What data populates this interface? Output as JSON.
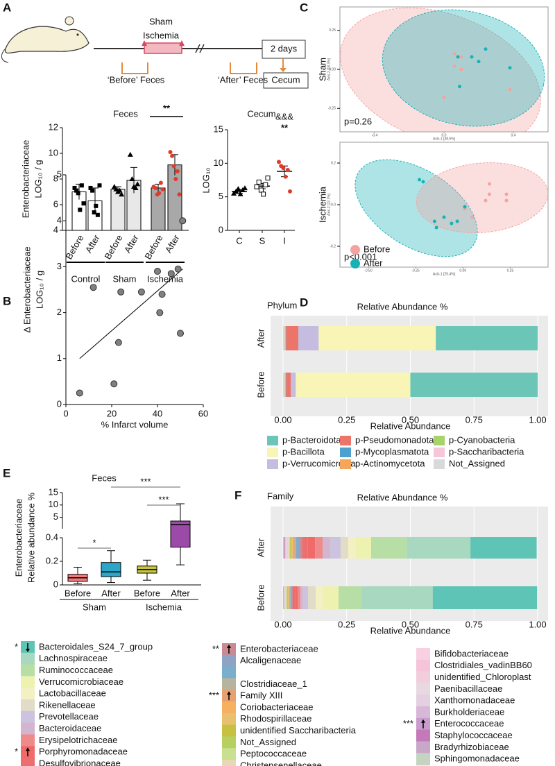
{
  "panels": [
    "A",
    "B",
    "C",
    "D",
    "E",
    "F"
  ],
  "schematic": {
    "sham": "Sham",
    "ischemia": "Ischemia",
    "before": "‘Before’ Feces",
    "after": "‘After’ Feces",
    "duration": "2 days",
    "cecum": "Cecum"
  },
  "chart_data": [
    {
      "type": "bar",
      "title": "Feces",
      "ylabel": [
        "Enterobacteriaceae",
        "LOG₁₀ / g"
      ],
      "categories": [
        "Before",
        "After",
        "Before",
        "After",
        "Before",
        "After"
      ],
      "groups": [
        "Control",
        "Sham",
        "Ischemia"
      ],
      "values": [
        7.0,
        6.3,
        7.2,
        7.9,
        7.3,
        9.1
      ],
      "errors": [
        0.6,
        1.0,
        0.2,
        1.0,
        0.3,
        0.8
      ],
      "points": [
        [
          7.3,
          7.1,
          6.9,
          5.6,
          7.5,
          6.1
        ],
        [
          7.3,
          7.1,
          5.4,
          5.9,
          5.2,
          7.5
        ],
        [
          7.4,
          7.2,
          7.0,
          7.1,
          6.8
        ],
        [
          9.9,
          8.0,
          7.4,
          7.3,
          7.6
        ],
        [
          7.4,
          7.3,
          6.8,
          6.9,
          7.7,
          7.2
        ],
        [
          10.1,
          9.8,
          9.0,
          8.0,
          8.6,
          6.8
        ]
      ],
      "colors": [
        "#ffffff",
        "#ffffff",
        "#e8e8e8",
        "#e8e8e8",
        "#a8a8a8",
        "#a8a8a8"
      ],
      "point_markers": [
        "square",
        "square",
        "triangle",
        "triangle",
        "circle",
        "circle"
      ],
      "point_colors": [
        "#000000",
        "#000000",
        "#000000",
        "#000000",
        "#e03a2a",
        "#e03a2a"
      ],
      "ylim": [
        4,
        12
      ],
      "yticks": [
        4,
        6,
        8,
        10,
        12
      ],
      "annotation": "**"
    },
    {
      "type": "dot",
      "title": "Cecum",
      "ylabel": "LOG₁₀",
      "categories": [
        "C",
        "S",
        "I"
      ],
      "values": [
        5.8,
        6.6,
        8.8
      ],
      "errors": [
        0.3,
        0.4,
        0.8
      ],
      "points": [
        [
          5.5,
          5.8,
          6.2,
          5.4,
          6.0,
          6.3
        ],
        [
          6.5,
          7.2,
          6.0,
          5.4,
          6.8,
          7.8
        ],
        [
          10.2,
          9.6,
          9.3,
          8.0,
          9.0,
          5.8
        ]
      ],
      "point_markers": [
        "triangle",
        "square",
        "circle"
      ],
      "point_colors": [
        "#000000",
        "#000000",
        "#e03a2a"
      ],
      "ylim": [
        0,
        15
      ],
      "yticks": [
        0,
        5,
        10,
        15
      ],
      "annotations": [
        "&&&",
        "**"
      ]
    },
    {
      "type": "scatter",
      "xlabel": "% Infarct volume",
      "ylabel": [
        "Δ Enterobacteriaceae",
        "LOG₁₀ / g"
      ],
      "x": [
        6,
        12,
        21,
        23,
        24,
        33,
        40,
        41,
        42,
        46,
        49,
        50,
        51
      ],
      "y": [
        0.25,
        2.55,
        0.45,
        1.35,
        2.45,
        2.45,
        2.9,
        2.0,
        2.4,
        2.85,
        2.95,
        1.55,
        4.0
      ],
      "color": "#808080",
      "trendline": {
        "x": [
          6,
          51
        ],
        "y": [
          1.0,
          2.95
        ]
      },
      "xlim": [
        0,
        60
      ],
      "xticks": [
        0,
        20,
        40,
        60
      ],
      "ylim": [
        0,
        5
      ],
      "yticks": [
        0,
        1,
        2,
        3,
        4,
        5
      ]
    },
    {
      "type": "scatter",
      "title": "Sham",
      "annotation": "p=0.26",
      "xlabel": "Axis.1 [38.6%]",
      "ylabel": "Axis.2 [18.3%]",
      "xlim": [
        -0.6,
        0.6
      ],
      "xticks": [
        -0.4,
        {
          "value": 0,
          "label": "0.0"
        },
        0.4
      ],
      "ylim": [
        -0.4,
        0.4
      ],
      "yticks": [
        -0.25,
        {
          "value": 0,
          "label": "0.00"
        },
        0.25
      ],
      "series": [
        {
          "color": "#f4a3a0",
          "x": [
            0.06,
            0.1,
            0.06,
            0.1,
            0.0,
            0.38
          ],
          "y": [
            0.1,
            0.08,
            0.02,
            0,
            -0.18,
            -0.13
          ]
        },
        {
          "color": "#17b2b6",
          "x": [
            0.08,
            0.16,
            0.24,
            0.38,
            0.09,
            0.2
          ],
          "y": [
            0.08,
            0.08,
            0.13,
            0.01,
            -0.11,
            0.05
          ]
        }
      ]
    },
    {
      "type": "scatter",
      "title": "Ischemia",
      "annotation": "p<0.001",
      "xlabel": "Axis.1 [25.4%]",
      "ylabel": "Axis.2 [22.1%]",
      "xlim": [
        -0.65,
        0.45
      ],
      "xticks": [
        {
          "value": -0.5,
          "label": "-0.50"
        },
        -0.25,
        {
          "value": 0,
          "label": "0.00"
        },
        0.25
      ],
      "ylim": [
        -0.3,
        0.3
      ],
      "yticks": [
        -0.2,
        {
          "value": 0,
          "label": "0.0"
        },
        0.2
      ],
      "series": [
        {
          "name": "Before",
          "color": "#f4a3a0",
          "x": [
            0.14,
            0.14,
            0.23,
            0.23,
            0.12,
            0.01,
            0.05
          ],
          "y": [
            0.1,
            0.05,
            0.05,
            0.02,
            0.02,
            -0.02,
            -0.06
          ]
        },
        {
          "name": "After",
          "color": "#17b2b6",
          "x": [
            -0.23,
            -0.21,
            0.01,
            -0.1,
            -0.03,
            -0.15,
            -0.06,
            -0.14
          ],
          "y": [
            0.12,
            0.11,
            -0.01,
            -0.06,
            -0.08,
            -0.08,
            -0.09,
            -0.11
          ]
        }
      ]
    },
    {
      "type": "stacked_bar_h",
      "label": "Phylum",
      "title": "Relative Abundance %",
      "xlabel": "Relative Abundance",
      "categories": [
        "After",
        "Before"
      ],
      "xlim": [
        0,
        1
      ],
      "xticks": [
        {
          "value": 0,
          "label": "0.00"
        },
        0.25,
        {
          "value": 0.5,
          "label": "0.50"
        },
        0.75,
        {
          "value": 1,
          "label": "1.00"
        }
      ],
      "grid": true,
      "series": [
        {
          "name": "p-Bacteroidota",
          "color": "#6cc6b8",
          "values": [
            0.4,
            0.5
          ]
        },
        {
          "name": "p-Bacillota",
          "color": "#f8f5b6",
          "values": [
            0.46,
            0.45
          ]
        },
        {
          "name": "p-Verrucomicrobia",
          "color": "#c4bddf",
          "values": [
            0.08,
            0.02
          ]
        },
        {
          "name": "p-Pseudomonadota",
          "color": "#ec7468",
          "values": [
            0.048,
            0.018
          ]
        },
        {
          "name": "p-Mycoplasmatota",
          "color": "#4ea1cf",
          "values": [
            0.001,
            0.001
          ]
        },
        {
          "name": "p-Actinomycetota",
          "color": "#f6a65b",
          "values": [
            0.001,
            0.001
          ]
        },
        {
          "name": "p-Cyanobacteria",
          "color": "#a7d36b",
          "values": [
            0.003,
            0.003
          ]
        },
        {
          "name": "p-Saccharibacteria",
          "color": "#f6c7d9",
          "values": [
            0.002,
            0.002
          ]
        },
        {
          "name": "Not_Assigned",
          "color": "#d9d9d9",
          "values": [
            0.005,
            0.005
          ]
        }
      ]
    },
    {
      "type": "box",
      "title": "Feces",
      "ylabel": [
        "Enterobacteriaceae",
        "Relative abundance %"
      ],
      "categories": [
        "Before",
        "After",
        "Before",
        "After"
      ],
      "groups": [
        "Sham",
        "Ischemia"
      ],
      "colors": [
        "#f47a7a",
        "#2aa6c8",
        "#c8c640",
        "#9b4aa8"
      ],
      "min": [
        0.01,
        0.02,
        0.04,
        0.17
      ],
      "q1": [
        0.03,
        0.07,
        0.1,
        0.32
      ],
      "median": [
        0.06,
        0.11,
        0.13,
        2.0
      ],
      "q3": [
        0.09,
        0.19,
        0.16,
        3.5
      ],
      "max": [
        0.15,
        0.29,
        0.21,
        10.5
      ],
      "ylim": [
        0,
        0.4
      ],
      "yticks": [
        0,
        0.2,
        0.4
      ],
      "ylim_upper": [
        0.4,
        15
      ],
      "yticks_upper": [
        5,
        10,
        15
      ],
      "annotations": [
        "*",
        "***",
        "***"
      ]
    },
    {
      "type": "stacked_bar_h",
      "label": "Family",
      "title": "Relative Abundance %",
      "xlabel": "Relative Abundance",
      "categories": [
        "After",
        "Before"
      ],
      "xlim": [
        0,
        1
      ],
      "xticks": [
        {
          "value": 0,
          "label": "0.00"
        },
        0.25,
        {
          "value": 0.5,
          "label": "0.50"
        },
        0.75,
        {
          "value": 1,
          "label": "1.00"
        }
      ],
      "grid": true,
      "series": [
        {
          "name": "Bacteroidales_S24_7_group",
          "color": "#5ec4b6",
          "values": [
            0.26,
            0.41
          ],
          "sig": "*",
          "arrow": "down"
        },
        {
          "name": "Lachnospiraceae",
          "color": "#a8d8c0",
          "values": [
            0.25,
            0.28
          ]
        },
        {
          "name": "Ruminococcaceae",
          "color": "#b7dfa5",
          "values": [
            0.14,
            0.09
          ]
        },
        {
          "name": "Verrucomicrobiaceae",
          "color": "#eef2b0",
          "values": [
            0.06,
            0.06
          ]
        },
        {
          "name": "Lactobacillaceae",
          "color": "#f3f0c4",
          "values": [
            0.03,
            0.03
          ]
        },
        {
          "name": "Rikenellaceae",
          "color": "#e1dcc6",
          "values": [
            0.03,
            0.03
          ]
        },
        {
          "name": "Prevotellaceae",
          "color": "#cbc3e0",
          "values": [
            0.04,
            0.02
          ]
        },
        {
          "name": "Bacteroidaceae",
          "color": "#d4b5cf",
          "values": [
            0.03,
            0.01
          ]
        },
        {
          "name": "Erysipelotrichaceae",
          "color": "#ef8a8a",
          "values": [
            0.03,
            0.01
          ]
        },
        {
          "name": "Porphyromonadaceae",
          "color": "#f06a6a",
          "values": [
            0.03,
            0.01
          ],
          "sig": "*",
          "arrow": "up"
        },
        {
          "name": "Desulfovibrionaceae",
          "color": "#ec6e6e",
          "values": [
            0.02,
            0.01
          ]
        },
        {
          "name": "Enterobacteriaceae",
          "color": "#c98a92",
          "values": [
            0.01,
            0.004
          ],
          "sig": "**",
          "arrow": "up"
        },
        {
          "name": "Alcaligenaceae",
          "color": "#8fa3c4",
          "values": [
            0.01,
            0.003
          ]
        },
        {
          "name": null,
          "color": "#7aaecd",
          "values": [
            0.005,
            0.002
          ]
        },
        {
          "name": "Clostridiaceae_1",
          "color": "#b7b49e",
          "values": [
            0.005,
            0.003
          ]
        },
        {
          "name": "Family XIII",
          "color": "#e8a070",
          "values": [
            0.005,
            0.002
          ],
          "sig": "***",
          "arrow": "up"
        },
        {
          "name": "Coriobacteriaceae",
          "color": "#f5b060",
          "values": [
            0.004,
            0.002
          ]
        },
        {
          "name": "Rhodospirillaceae",
          "color": "#e8c070",
          "values": [
            0.004,
            0.002
          ]
        },
        {
          "name": "unidentified Saccharibacteria",
          "color": "#c8c040",
          "values": [
            0.003,
            0.002
          ]
        },
        {
          "name": "Not_Assigned",
          "color": "#b8d060",
          "values": [
            0.003,
            0.003
          ]
        },
        {
          "name": "Peptococcaceae",
          "color": "#c8e090",
          "values": [
            0.003,
            0.002
          ]
        },
        {
          "name": "Christensenellaceae",
          "color": "#e8d8b8",
          "values": [
            0.003,
            0.002
          ]
        },
        {
          "name": "Bifidobacteriaceae",
          "color": "#f9d0e0",
          "values": [
            0.002,
            0.001
          ]
        },
        {
          "name": "Clostridiales_vadinBB60",
          "color": "#f5c4d8",
          "values": [
            0.003,
            0.002
          ]
        },
        {
          "name": "unidentified_Chloroplast",
          "color": "#f2cedd",
          "values": [
            0.002,
            0.001
          ]
        },
        {
          "name": "Paenibacillaceae",
          "color": "#e8d8e0",
          "values": [
            0.002,
            0.001
          ]
        },
        {
          "name": "Xanthomonadaceae",
          "color": "#e4d0e0",
          "values": [
            0.002,
            0.001
          ]
        },
        {
          "name": "Burkholderiaceae",
          "color": "#d8b8d8",
          "values": [
            0.002,
            0.001
          ]
        },
        {
          "name": "Enterococcaceae",
          "color": "#c89ccc",
          "values": [
            0.002,
            0.001
          ],
          "sig": "***",
          "arrow": "up"
        },
        {
          "name": "Staphylococcaceae",
          "color": "#c47ab8",
          "values": [
            0.002,
            0.001
          ]
        },
        {
          "name": "Bradyrhizobiaceae",
          "color": "#c8a8c8",
          "values": [
            0.002,
            0.001
          ]
        },
        {
          "name": "Sphingomonadaceae",
          "color": "#c4d4c0",
          "values": [
            0.002,
            0.001
          ]
        }
      ]
    }
  ]
}
